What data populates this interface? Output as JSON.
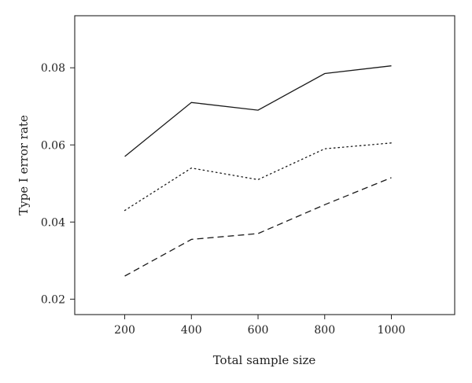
{
  "chart_data": {
    "type": "line",
    "title": "",
    "xlabel": "Total sample size",
    "ylabel": "Type I error rate",
    "x": [
      200,
      400,
      600,
      800,
      1000
    ],
    "xticks": [
      "200",
      "400",
      "600",
      "800",
      "1000"
    ],
    "yticks": [
      "0.02",
      "0.04",
      "0.06",
      "0.08"
    ],
    "xlim": [
      50,
      1190
    ],
    "ylim": [
      0.016,
      0.0935
    ],
    "grid": false,
    "legend": "none",
    "series": [
      {
        "style": "solid",
        "values": [
          0.057,
          0.071,
          0.069,
          0.0785,
          0.0805
        ]
      },
      {
        "style": "dotted",
        "values": [
          0.043,
          0.054,
          0.051,
          0.059,
          0.0605
        ]
      },
      {
        "style": "dashed",
        "values": [
          0.026,
          0.0355,
          0.037,
          0.0445,
          0.0515
        ]
      }
    ]
  }
}
